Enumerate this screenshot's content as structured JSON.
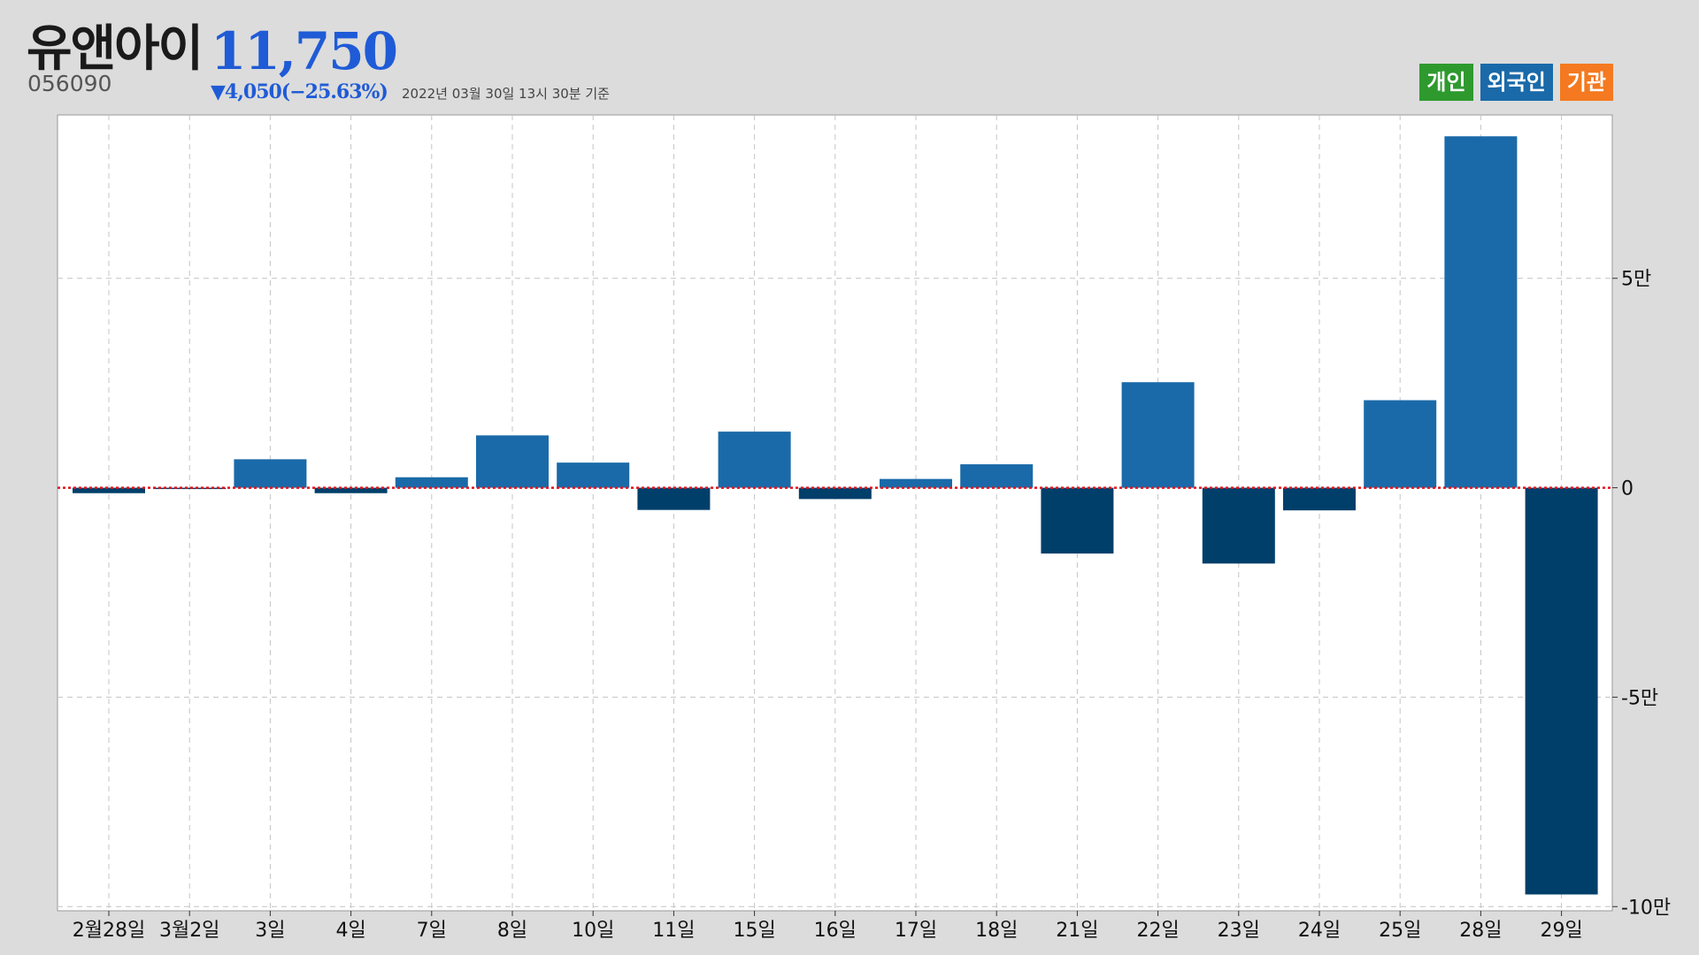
{
  "header": {
    "stock_name": "유앤아이",
    "price": "11,750",
    "code": "056090",
    "change": "▼4,050(−25.63%)",
    "as_of": "2022년 03월 30일 13시 30분 기준"
  },
  "legend": [
    {
      "label": "개인",
      "color": "#2e9a2e"
    },
    {
      "label": "외국인",
      "color": "#1a6aa9"
    },
    {
      "label": "기관",
      "color": "#f47920"
    }
  ],
  "colors": {
    "positive_bar": "#1a6aa9",
    "negative_bar": "#003f6a",
    "zero_line": "#e0141e",
    "grid": "#c4c4c4"
  },
  "chart_data": {
    "type": "bar",
    "series": [
      {
        "name": "외국인"
      }
    ],
    "categories": [
      "2월28일",
      "3월2일",
      "3일",
      "4일",
      "7일",
      "8일",
      "10일",
      "11일",
      "15일",
      "16일",
      "17일",
      "18일",
      "21일",
      "22일",
      "23일",
      "24일",
      "25일",
      "28일",
      "29일"
    ],
    "values": [
      -1300,
      -300,
      6800,
      -1300,
      2500,
      12500,
      6000,
      -5300,
      13400,
      -2700,
      2100,
      5600,
      -15700,
      25200,
      -18100,
      -5400,
      20900,
      83900,
      -97100
    ],
    "ylim": [
      -101000,
      89000
    ],
    "yticks": [
      {
        "value": 50000,
        "label": "5만"
      },
      {
        "value": 0,
        "label": "0"
      },
      {
        "value": -50000,
        "label": "-5만"
      },
      {
        "value": -100000,
        "label": "-10만"
      }
    ],
    "grid": true,
    "legend_position": "top-right"
  }
}
